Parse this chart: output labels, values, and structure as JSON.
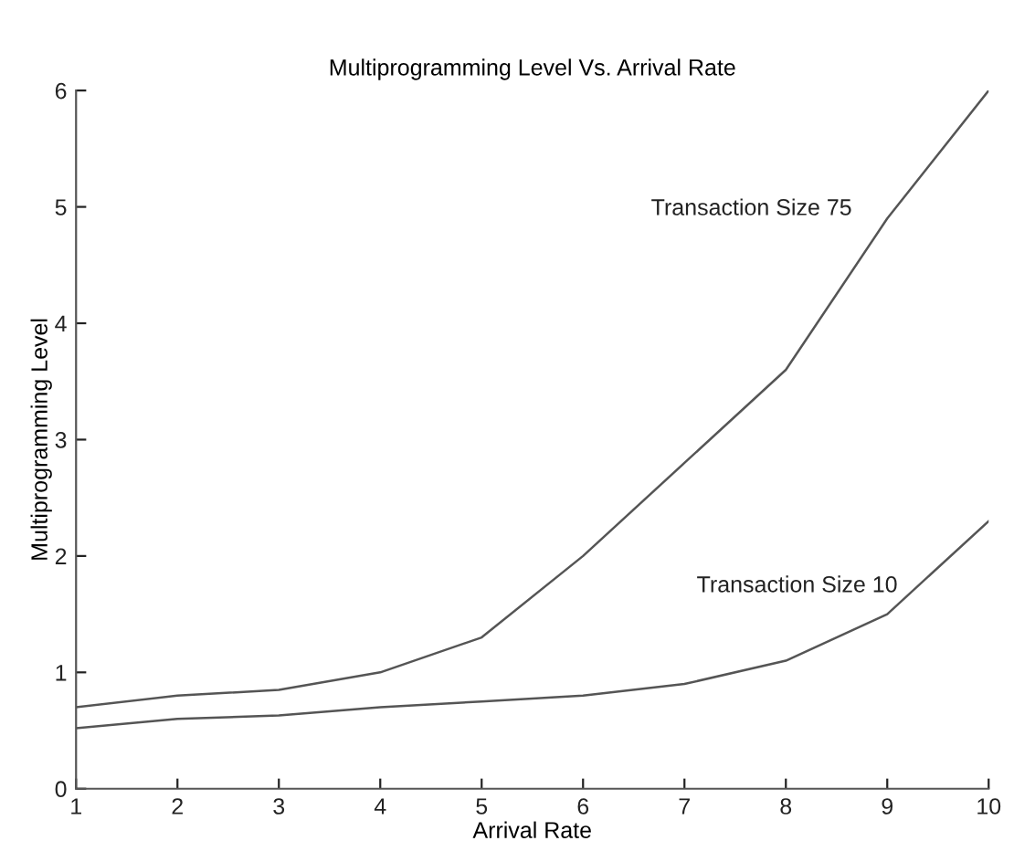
{
  "chart_data": {
    "type": "line",
    "title": "Multiprogramming Level Vs. Arrival Rate",
    "xlabel": "Arrival Rate",
    "ylabel": "Multiprogramming Level",
    "x": [
      1,
      2,
      3,
      4,
      5,
      6,
      7,
      8,
      9,
      10
    ],
    "series": [
      {
        "name": "Transaction Size 75",
        "color": "#555555",
        "values": [
          0.7,
          0.8,
          0.85,
          1.0,
          1.3,
          2.0,
          2.8,
          3.6,
          4.9,
          6.0
        ]
      },
      {
        "name": "Transaction Size 10",
        "color": "#555555",
        "values": [
          0.52,
          0.6,
          0.63,
          0.7,
          0.75,
          0.8,
          0.9,
          1.1,
          1.5,
          2.3
        ]
      }
    ],
    "xlim": [
      1,
      10
    ],
    "ylim": [
      0,
      6
    ],
    "xticks": [
      1,
      2,
      3,
      4,
      5,
      6,
      7,
      8,
      9,
      10
    ],
    "yticks": [
      0,
      1,
      2,
      3,
      4,
      5,
      6
    ],
    "grid": false,
    "legend": false
  }
}
